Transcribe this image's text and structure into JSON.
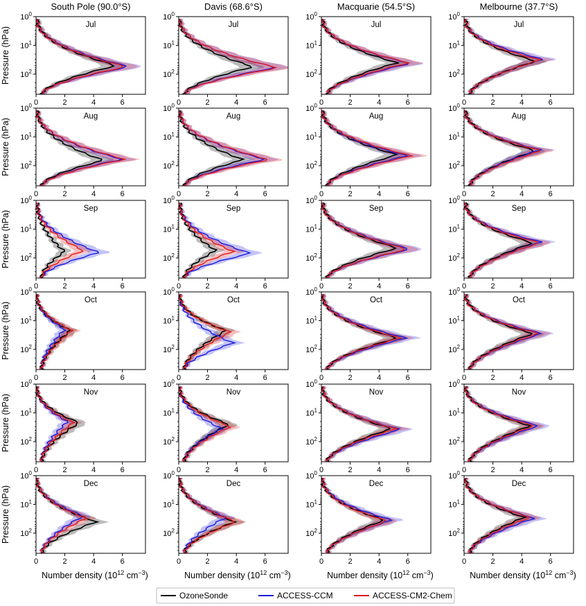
{
  "figure": {
    "columns": [
      "South Pole (90.0°S)",
      "Davis (68.6°S)",
      "Macquarie (54.5°S)",
      "Melbourne (37.7°S)"
    ],
    "months": [
      "Jul",
      "Aug",
      "Sep",
      "Oct",
      "Nov",
      "Dec"
    ],
    "ylabel": "Pressure (hPa)",
    "xlabel_main": "Number density (10",
    "xlabel_exp": "12",
    "xlabel_unit": " cm",
    "xlabel_unit_exp": "−3",
    "xlabel_close": ")",
    "ytick_base": "10",
    "yticks_exp": [
      "0",
      "1",
      "2"
    ],
    "xticks": [
      "0",
      "2",
      "4",
      "6"
    ],
    "legend": [
      {
        "label": "OzoneSonde",
        "color": "#000000"
      },
      {
        "label": "ACCESS-CCM",
        "color": "#1a1adc"
      },
      {
        "label": "ACCESS-CM2-Chem",
        "color": "#e01a1a"
      }
    ]
  },
  "chart_data": {
    "type": "line",
    "description_axes": "x = ozone number density (1e12 cm^-3), y = pressure (hPa, log scale, inverted)",
    "xlim": [
      0,
      7.6
    ],
    "ylim_hPa": [
      1,
      500
    ],
    "y_scale": "log",
    "series_names": [
      "OzoneSonde",
      "ACCESS-CCM",
      "ACCESS-CM2-Chem"
    ],
    "panels": [
      {
        "station": "South Pole (90.0°S)",
        "month": "Jul",
        "sonde": {
          "xmax": 5.6,
          "pmax": 50,
          "xtop": 1.0
        },
        "ccm": {
          "xmax": 6.5,
          "pmax": 55
        },
        "cm2": {
          "xmax": 6.3,
          "pmax": 55
        }
      },
      {
        "station": "South Pole (90.0°S)",
        "month": "Aug",
        "sonde": {
          "xmax": 4.7,
          "pmax": 65,
          "xtop": 1.0
        },
        "ccm": {
          "xmax": 6.0,
          "pmax": 60
        },
        "cm2": {
          "xmax": 6.2,
          "pmax": 60
        }
      },
      {
        "station": "South Pole (90.0°S)",
        "month": "Sep",
        "sonde": {
          "xmax": 2.0,
          "pmax": 60,
          "xtop": 1.0
        },
        "ccm": {
          "xmax": 4.4,
          "pmax": 65
        },
        "cm2": {
          "xmax": 3.3,
          "pmax": 55
        }
      },
      {
        "station": "South Pole (90.0°S)",
        "month": "Oct",
        "sonde": {
          "xmax": 2.4,
          "pmax": 22,
          "xtop": 0.3
        },
        "ccm": {
          "xmax": 2.0,
          "pmax": 20
        },
        "cm2": {
          "xmax": 2.5,
          "pmax": 22
        }
      },
      {
        "station": "South Pole (90.0°S)",
        "month": "Nov",
        "sonde": {
          "xmax": 3.0,
          "pmax": 22,
          "xtop": 0.3
        },
        "ccm": {
          "xmax": 2.2,
          "pmax": 20
        },
        "cm2": {
          "xmax": 2.6,
          "pmax": 22
        }
      },
      {
        "station": "South Pole (90.0°S)",
        "month": "Dec",
        "sonde": {
          "xmax": 4.2,
          "pmax": 40,
          "xtop": 0.3
        },
        "ccm": {
          "xmax": 3.3,
          "pmax": 25
        },
        "cm2": {
          "xmax": 3.5,
          "pmax": 30
        }
      },
      {
        "station": "Davis (68.6°S)",
        "month": "Jul",
        "sonde": {
          "xmax": 5.2,
          "pmax": 55,
          "xtop": 0.5
        },
        "ccm": {
          "xmax": 6.8,
          "pmax": 58
        },
        "cm2": {
          "xmax": 6.9,
          "pmax": 60
        }
      },
      {
        "station": "Davis (68.6°S)",
        "month": "Aug",
        "sonde": {
          "xmax": 4.5,
          "pmax": 62,
          "xtop": 0.5
        },
        "ccm": {
          "xmax": 6.0,
          "pmax": 60
        },
        "cm2": {
          "xmax": 6.3,
          "pmax": 62
        }
      },
      {
        "station": "Davis (68.6°S)",
        "month": "Sep",
        "sonde": {
          "xmax": 2.6,
          "pmax": 55,
          "xtop": 1.0
        },
        "ccm": {
          "xmax": 5.0,
          "pmax": 70
        },
        "cm2": {
          "xmax": 3.8,
          "pmax": 60
        }
      },
      {
        "station": "Davis (68.6°S)",
        "month": "Oct",
        "sonde": {
          "xmax": 3.3,
          "pmax": 22,
          "xtop": 0.5
        },
        "ccm": {
          "xmax": 3.8,
          "pmax": 60
        },
        "cm2": {
          "xmax": 3.6,
          "pmax": 25
        }
      },
      {
        "station": "Davis (68.6°S)",
        "month": "Nov",
        "sonde": {
          "xmax": 3.5,
          "pmax": 25,
          "xtop": 0.5
        },
        "ccm": {
          "xmax": 3.0,
          "pmax": 35
        },
        "cm2": {
          "xmax": 3.6,
          "pmax": 30
        }
      },
      {
        "station": "Davis (68.6°S)",
        "month": "Dec",
        "sonde": {
          "xmax": 3.9,
          "pmax": 40,
          "xtop": 0.5
        },
        "ccm": {
          "xmax": 3.3,
          "pmax": 28
        },
        "cm2": {
          "xmax": 4.0,
          "pmax": 40
        }
      },
      {
        "station": "Macquarie (54.5°S)",
        "month": "Jul",
        "sonde": {
          "xmax": 5.3,
          "pmax": 40,
          "xtop": 1.0
        },
        "ccm": {
          "xmax": 6.2,
          "pmax": 42
        },
        "cm2": {
          "xmax": 6.1,
          "pmax": 40
        }
      },
      {
        "station": "Macquarie (54.5°S)",
        "month": "Aug",
        "sonde": {
          "xmax": 5.3,
          "pmax": 42,
          "xtop": 1.0
        },
        "ccm": {
          "xmax": 6.0,
          "pmax": 45
        },
        "cm2": {
          "xmax": 6.3,
          "pmax": 45
        }
      },
      {
        "station": "Macquarie (54.5°S)",
        "month": "Sep",
        "sonde": {
          "xmax": 5.3,
          "pmax": 45,
          "xtop": 1.0
        },
        "ccm": {
          "xmax": 6.2,
          "pmax": 50
        },
        "cm2": {
          "xmax": 6.0,
          "pmax": 50
        }
      },
      {
        "station": "Macquarie (54.5°S)",
        "month": "Oct",
        "sonde": {
          "xmax": 5.3,
          "pmax": 40,
          "xtop": 0.5
        },
        "ccm": {
          "xmax": 5.9,
          "pmax": 40
        },
        "cm2": {
          "xmax": 5.5,
          "pmax": 40
        }
      },
      {
        "station": "Macquarie (54.5°S)",
        "month": "Nov",
        "sonde": {
          "xmax": 4.9,
          "pmax": 35,
          "xtop": 0.5
        },
        "ccm": {
          "xmax": 5.5,
          "pmax": 38
        },
        "cm2": {
          "xmax": 5.2,
          "pmax": 36
        }
      },
      {
        "station": "Macquarie (54.5°S)",
        "month": "Dec",
        "sonde": {
          "xmax": 4.4,
          "pmax": 35,
          "xtop": 0.5
        },
        "ccm": {
          "xmax": 4.9,
          "pmax": 35
        },
        "cm2": {
          "xmax": 4.6,
          "pmax": 38
        }
      },
      {
        "station": "Melbourne (37.7°S)",
        "month": "Jul",
        "sonde": {
          "xmax": 5.0,
          "pmax": 35,
          "xtop": 1.2
        },
        "ccm": {
          "xmax": 5.5,
          "pmax": 30
        },
        "cm2": {
          "xmax": 5.3,
          "pmax": 32
        }
      },
      {
        "station": "Melbourne (37.7°S)",
        "month": "Aug",
        "sonde": {
          "xmax": 5.0,
          "pmax": 30,
          "xtop": 1.2
        },
        "ccm": {
          "xmax": 5.3,
          "pmax": 28
        },
        "cm2": {
          "xmax": 5.4,
          "pmax": 30
        }
      },
      {
        "station": "Melbourne (37.7°S)",
        "month": "Sep",
        "sonde": {
          "xmax": 4.8,
          "pmax": 30,
          "xtop": 1.2
        },
        "ccm": {
          "xmax": 5.4,
          "pmax": 28
        },
        "cm2": {
          "xmax": 5.3,
          "pmax": 30
        }
      },
      {
        "station": "Melbourne (37.7°S)",
        "month": "Oct",
        "sonde": {
          "xmax": 4.8,
          "pmax": 28,
          "xtop": 1.2
        },
        "ccm": {
          "xmax": 5.4,
          "pmax": 28
        },
        "cm2": {
          "xmax": 5.2,
          "pmax": 28
        }
      },
      {
        "station": "Melbourne (37.7°S)",
        "month": "Nov",
        "sonde": {
          "xmax": 4.6,
          "pmax": 28,
          "xtop": 1.2
        },
        "ccm": {
          "xmax": 5.2,
          "pmax": 28
        },
        "cm2": {
          "xmax": 4.9,
          "pmax": 28
        }
      },
      {
        "station": "Melbourne (37.7°S)",
        "month": "Dec",
        "sonde": {
          "xmax": 4.2,
          "pmax": 28,
          "xtop": 1.2
        },
        "ccm": {
          "xmax": 4.9,
          "pmax": 30
        },
        "cm2": {
          "xmax": 4.6,
          "pmax": 28
        }
      }
    ]
  }
}
